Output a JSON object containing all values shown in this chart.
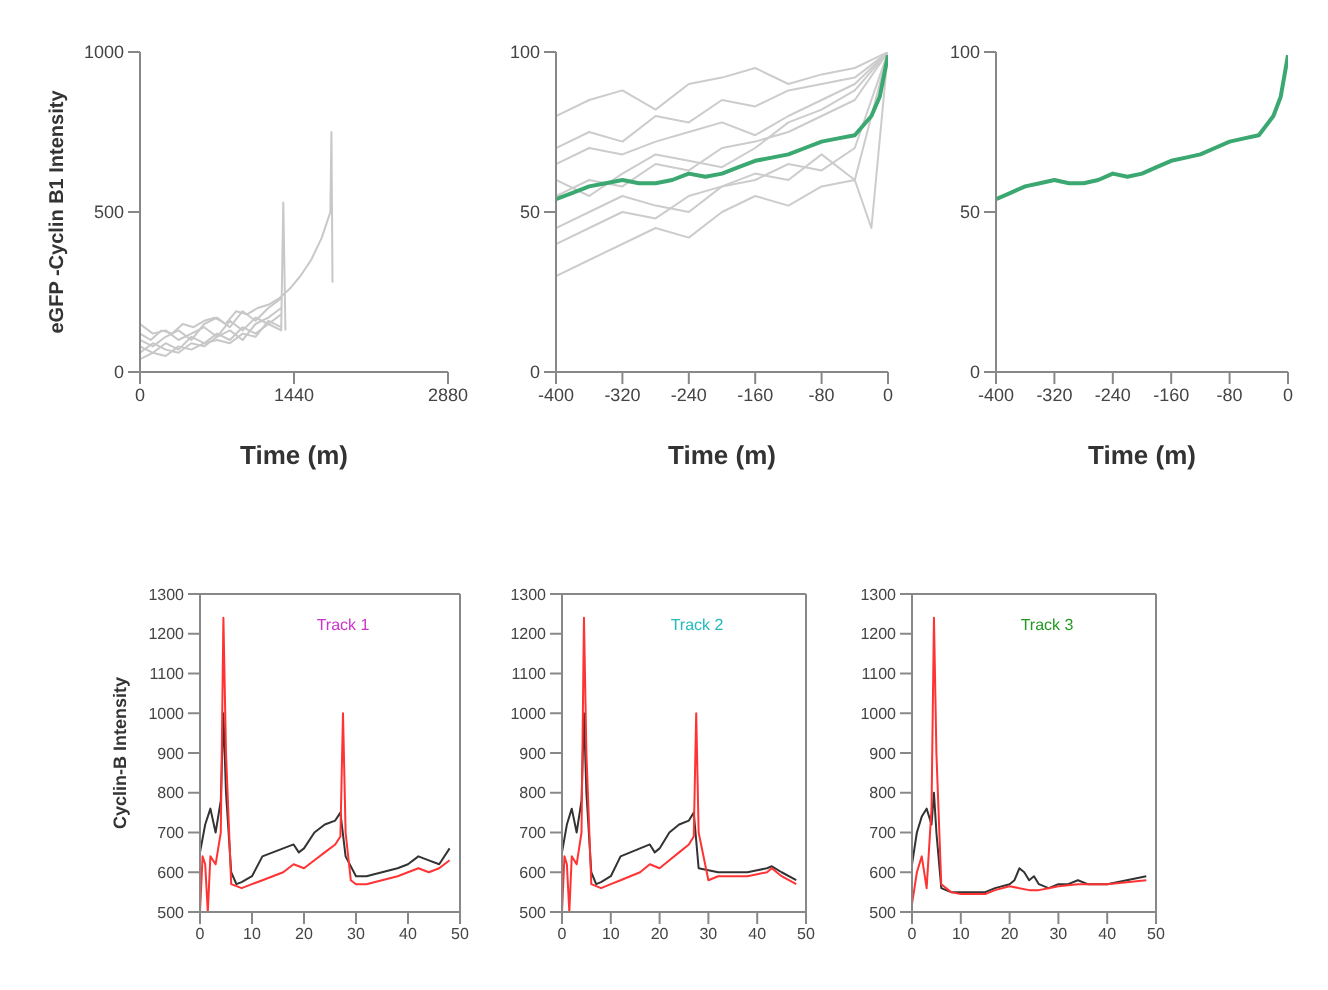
{
  "chart_data": [
    {
      "type": "line",
      "xlabel": "Time (m)",
      "ylabel": "eGFP -Cyclin B1 Intensity",
      "xlim": [
        0,
        2880
      ],
      "ylim": [
        0,
        1000
      ],
      "xticks": [
        0,
        1440,
        2880
      ],
      "yticks": [
        0,
        500,
        1000
      ],
      "series": [
        {
          "color": "#c8c8c8",
          "x": [
            0,
            120,
            240,
            360,
            480,
            600,
            720,
            840,
            960,
            1080,
            1200,
            1320,
            1340,
            1360
          ],
          "values": [
            80,
            60,
            90,
            70,
            110,
            90,
            120,
            100,
            140,
            120,
            150,
            130,
            530,
            130
          ]
        },
        {
          "color": "#c8c8c8",
          "x": [
            0,
            120,
            240,
            360,
            480,
            600,
            720,
            840,
            960,
            1080,
            1200,
            1320
          ],
          "values": [
            150,
            120,
            130,
            100,
            120,
            140,
            110,
            160,
            130,
            170,
            150,
            180
          ]
        },
        {
          "color": "#c8c8c8",
          "x": [
            0,
            120,
            240,
            360,
            480,
            600,
            720,
            840,
            960,
            1080,
            1200,
            1320
          ],
          "values": [
            40,
            60,
            50,
            80,
            70,
            90,
            100,
            90,
            120,
            110,
            160,
            140
          ]
        },
        {
          "color": "#c8c8c8",
          "x": [
            0,
            120,
            240,
            360,
            480,
            600,
            720,
            840,
            960,
            1080,
            1200,
            1320
          ],
          "values": [
            100,
            80,
            110,
            130,
            100,
            150,
            170,
            140,
            190,
            160,
            200,
            230
          ]
        },
        {
          "color": "#c8c8c8",
          "x": [
            0,
            120,
            240,
            360,
            480,
            600,
            720,
            840,
            960,
            1080,
            1200,
            1320
          ],
          "values": [
            60,
            90,
            70,
            60,
            90,
            80,
            110,
            130,
            100,
            150,
            170,
            200
          ]
        },
        {
          "color": "#c8c8c8",
          "x": [
            0,
            100,
            200,
            300,
            400,
            500,
            600,
            700,
            800,
            900,
            1000,
            1100,
            1200,
            1300,
            1400,
            1500,
            1600,
            1700,
            1780,
            1790,
            1800
          ],
          "values": [
            120,
            100,
            130,
            120,
            150,
            140,
            160,
            170,
            150,
            190,
            180,
            200,
            210,
            230,
            260,
            300,
            350,
            420,
            500,
            750,
            280
          ]
        }
      ]
    },
    {
      "type": "line",
      "xlabel": "Time (m)",
      "xlim": [
        -400,
        0
      ],
      "ylim": [
        0,
        100
      ],
      "xticks": [
        -400,
        -320,
        -240,
        -160,
        -80,
        0
      ],
      "yticks": [
        0,
        50,
        100
      ],
      "series": [
        {
          "color": "#cccccc",
          "x": [
            -400,
            -360,
            -320,
            -280,
            -240,
            -200,
            -160,
            -120,
            -80,
            -40,
            0
          ],
          "values": [
            70,
            75,
            72,
            80,
            78,
            85,
            83,
            88,
            90,
            92,
            100
          ]
        },
        {
          "color": "#cccccc",
          "x": [
            -400,
            -360,
            -320,
            -280,
            -240,
            -200,
            -160,
            -120,
            -80,
            -40,
            0
          ],
          "values": [
            55,
            60,
            58,
            65,
            63,
            70,
            72,
            75,
            80,
            85,
            100
          ]
        },
        {
          "color": "#cccccc",
          "x": [
            -400,
            -360,
            -320,
            -280,
            -240,
            -200,
            -160,
            -120,
            -80,
            -40,
            0
          ],
          "values": [
            40,
            45,
            50,
            48,
            55,
            58,
            60,
            65,
            63,
            70,
            100
          ]
        },
        {
          "color": "#cccccc",
          "x": [
            -400,
            -360,
            -320,
            -280,
            -240,
            -200,
            -160,
            -120,
            -80,
            -40,
            0
          ],
          "values": [
            30,
            35,
            40,
            45,
            42,
            50,
            55,
            52,
            58,
            60,
            100
          ]
        },
        {
          "color": "#cccccc",
          "x": [
            -400,
            -360,
            -320,
            -280,
            -240,
            -200,
            -160,
            -120,
            -80,
            -40,
            0
          ],
          "values": [
            80,
            85,
            88,
            82,
            90,
            92,
            95,
            90,
            93,
            95,
            100
          ]
        },
        {
          "color": "#cccccc",
          "x": [
            -400,
            -360,
            -320,
            -280,
            -240,
            -200,
            -160,
            -120,
            -80,
            -40,
            0
          ],
          "values": [
            60,
            55,
            62,
            68,
            66,
            64,
            70,
            78,
            82,
            88,
            100
          ]
        },
        {
          "color": "#cccccc",
          "x": [
            -400,
            -360,
            -320,
            -280,
            -240,
            -200,
            -160,
            -120,
            -80,
            -40,
            -20,
            0
          ],
          "values": [
            45,
            50,
            55,
            52,
            50,
            58,
            62,
            60,
            68,
            60,
            45,
            100
          ]
        },
        {
          "color": "#cccccc",
          "x": [
            -400,
            -360,
            -320,
            -280,
            -240,
            -200,
            -160,
            -120,
            -80,
            -40,
            0
          ],
          "values": [
            65,
            70,
            68,
            72,
            75,
            78,
            74,
            80,
            85,
            90,
            100
          ]
        },
        {
          "color": "#3aa870",
          "x": [
            -400,
            -380,
            -360,
            -340,
            -320,
            -300,
            -280,
            -260,
            -240,
            -220,
            -200,
            -180,
            -160,
            -140,
            -120,
            -100,
            -80,
            -60,
            -40,
            -20,
            -10,
            0
          ],
          "values": [
            54,
            56,
            58,
            59,
            60,
            59,
            59,
            60,
            62,
            61,
            62,
            64,
            66,
            67,
            68,
            70,
            72,
            73,
            74,
            80,
            86,
            99
          ]
        }
      ]
    },
    {
      "type": "line",
      "xlabel": "Time (m)",
      "xlim": [
        -400,
        0
      ],
      "ylim": [
        0,
        100
      ],
      "xticks": [
        -400,
        -320,
        -240,
        -160,
        -80,
        0
      ],
      "yticks": [
        0,
        50,
        100
      ],
      "series": [
        {
          "color": "#3aa870",
          "x": [
            -400,
            -380,
            -360,
            -340,
            -320,
            -300,
            -280,
            -260,
            -240,
            -220,
            -200,
            -180,
            -160,
            -140,
            -120,
            -100,
            -80,
            -60,
            -40,
            -20,
            -10,
            0
          ],
          "values": [
            54,
            56,
            58,
            59,
            60,
            59,
            59,
            60,
            62,
            61,
            62,
            64,
            66,
            67,
            68,
            70,
            72,
            73,
            74,
            80,
            86,
            99
          ]
        }
      ]
    },
    {
      "type": "line",
      "title": "Track 1",
      "ylabel": "Cyclin-B Intensity",
      "xlim": [
        0,
        50
      ],
      "ylim": [
        500,
        1300
      ],
      "xticks": [
        0,
        10,
        20,
        30,
        40,
        50
      ],
      "yticks": [
        500,
        600,
        700,
        800,
        900,
        1000,
        1100,
        1200,
        1300
      ],
      "series": [
        {
          "color": "#333333",
          "x": [
            0,
            1,
            2,
            3,
            4,
            4.5,
            5,
            6,
            7,
            8,
            10,
            12,
            14,
            16,
            18,
            19,
            20,
            22,
            24,
            26,
            27,
            27.5,
            28,
            30,
            32,
            35,
            38,
            40,
            42,
            44,
            46,
            48
          ],
          "values": [
            650,
            720,
            760,
            700,
            780,
            1000,
            800,
            600,
            570,
            575,
            590,
            640,
            650,
            660,
            670,
            650,
            660,
            700,
            720,
            730,
            750,
            null,
            640,
            590,
            590,
            600,
            610,
            620,
            640,
            630,
            620,
            660
          ]
        },
        {
          "color": "#ff3333",
          "x": [
            0,
            0.5,
            1,
            1.5,
            2,
            3,
            4,
            4.5,
            5,
            6,
            8,
            10,
            12,
            14,
            16,
            18,
            20,
            22,
            24,
            26,
            27,
            27.5,
            28,
            29,
            30,
            32,
            35,
            38,
            40,
            42,
            44,
            46,
            48
          ],
          "values": [
            500,
            640,
            620,
            500,
            640,
            620,
            700,
            1240,
            900,
            570,
            560,
            570,
            580,
            590,
            600,
            620,
            610,
            630,
            650,
            670,
            690,
            1000,
            700,
            580,
            570,
            570,
            580,
            590,
            600,
            610,
            600,
            610,
            630
          ]
        }
      ]
    },
    {
      "type": "line",
      "title": "Track 2",
      "xlim": [
        0,
        50
      ],
      "ylim": [
        500,
        1300
      ],
      "xticks": [
        0,
        10,
        20,
        30,
        40,
        50
      ],
      "yticks": [
        500,
        600,
        700,
        800,
        900,
        1000,
        1100,
        1200,
        1300
      ],
      "series": [
        {
          "color": "#333333",
          "x": [
            0,
            1,
            2,
            3,
            4,
            4.5,
            5,
            6,
            7,
            8,
            10,
            12,
            14,
            16,
            18,
            19,
            20,
            22,
            24,
            26,
            27,
            27.5,
            28,
            30,
            32,
            35,
            38,
            40,
            42,
            43,
            45,
            48
          ],
          "values": [
            650,
            720,
            760,
            700,
            780,
            1000,
            800,
            600,
            570,
            575,
            590,
            640,
            650,
            660,
            670,
            650,
            660,
            700,
            720,
            730,
            750,
            null,
            610,
            605,
            600,
            600,
            600,
            605,
            610,
            615,
            600,
            580
          ]
        },
        {
          "color": "#ff3333",
          "x": [
            0,
            0.5,
            1,
            1.5,
            2,
            3,
            4,
            4.5,
            5,
            6,
            8,
            10,
            12,
            14,
            16,
            18,
            20,
            22,
            24,
            26,
            27,
            27.5,
            28,
            30,
            32,
            35,
            38,
            40,
            42,
            43,
            45,
            48
          ],
          "values": [
            500,
            640,
            620,
            500,
            640,
            620,
            700,
            1240,
            900,
            570,
            560,
            570,
            580,
            590,
            600,
            620,
            610,
            630,
            650,
            670,
            690,
            1000,
            700,
            580,
            590,
            590,
            590,
            595,
            600,
            610,
            590,
            570
          ]
        }
      ]
    },
    {
      "type": "line",
      "title": "Track 3",
      "xlim": [
        0,
        50
      ],
      "ylim": [
        500,
        1300
      ],
      "xticks": [
        0,
        10,
        20,
        30,
        40,
        50
      ],
      "yticks": [
        500,
        600,
        700,
        800,
        900,
        1000,
        1100,
        1200,
        1300
      ],
      "series": [
        {
          "color": "#333333",
          "x": [
            0,
            1,
            2,
            3,
            4,
            4.5,
            5,
            6,
            8,
            10,
            12,
            15,
            17,
            20,
            21,
            22,
            23,
            24,
            25,
            26,
            28,
            30,
            32,
            34,
            36,
            40,
            44,
            48
          ],
          "values": [
            620,
            700,
            740,
            760,
            720,
            800,
            700,
            560,
            550,
            550,
            550,
            550,
            560,
            570,
            580,
            610,
            600,
            580,
            590,
            570,
            560,
            570,
            570,
            580,
            570,
            570,
            580,
            590
          ]
        },
        {
          "color": "#ff3333",
          "x": [
            0,
            1,
            2,
            3,
            4,
            4.5,
            5,
            6,
            8,
            10,
            12,
            15,
            17,
            20,
            22,
            24,
            26,
            28,
            30,
            34,
            40,
            44,
            48
          ],
          "values": [
            520,
            600,
            640,
            560,
            760,
            1240,
            900,
            570,
            550,
            545,
            545,
            545,
            555,
            565,
            560,
            555,
            555,
            560,
            565,
            570,
            570,
            575,
            580
          ]
        }
      ]
    }
  ]
}
